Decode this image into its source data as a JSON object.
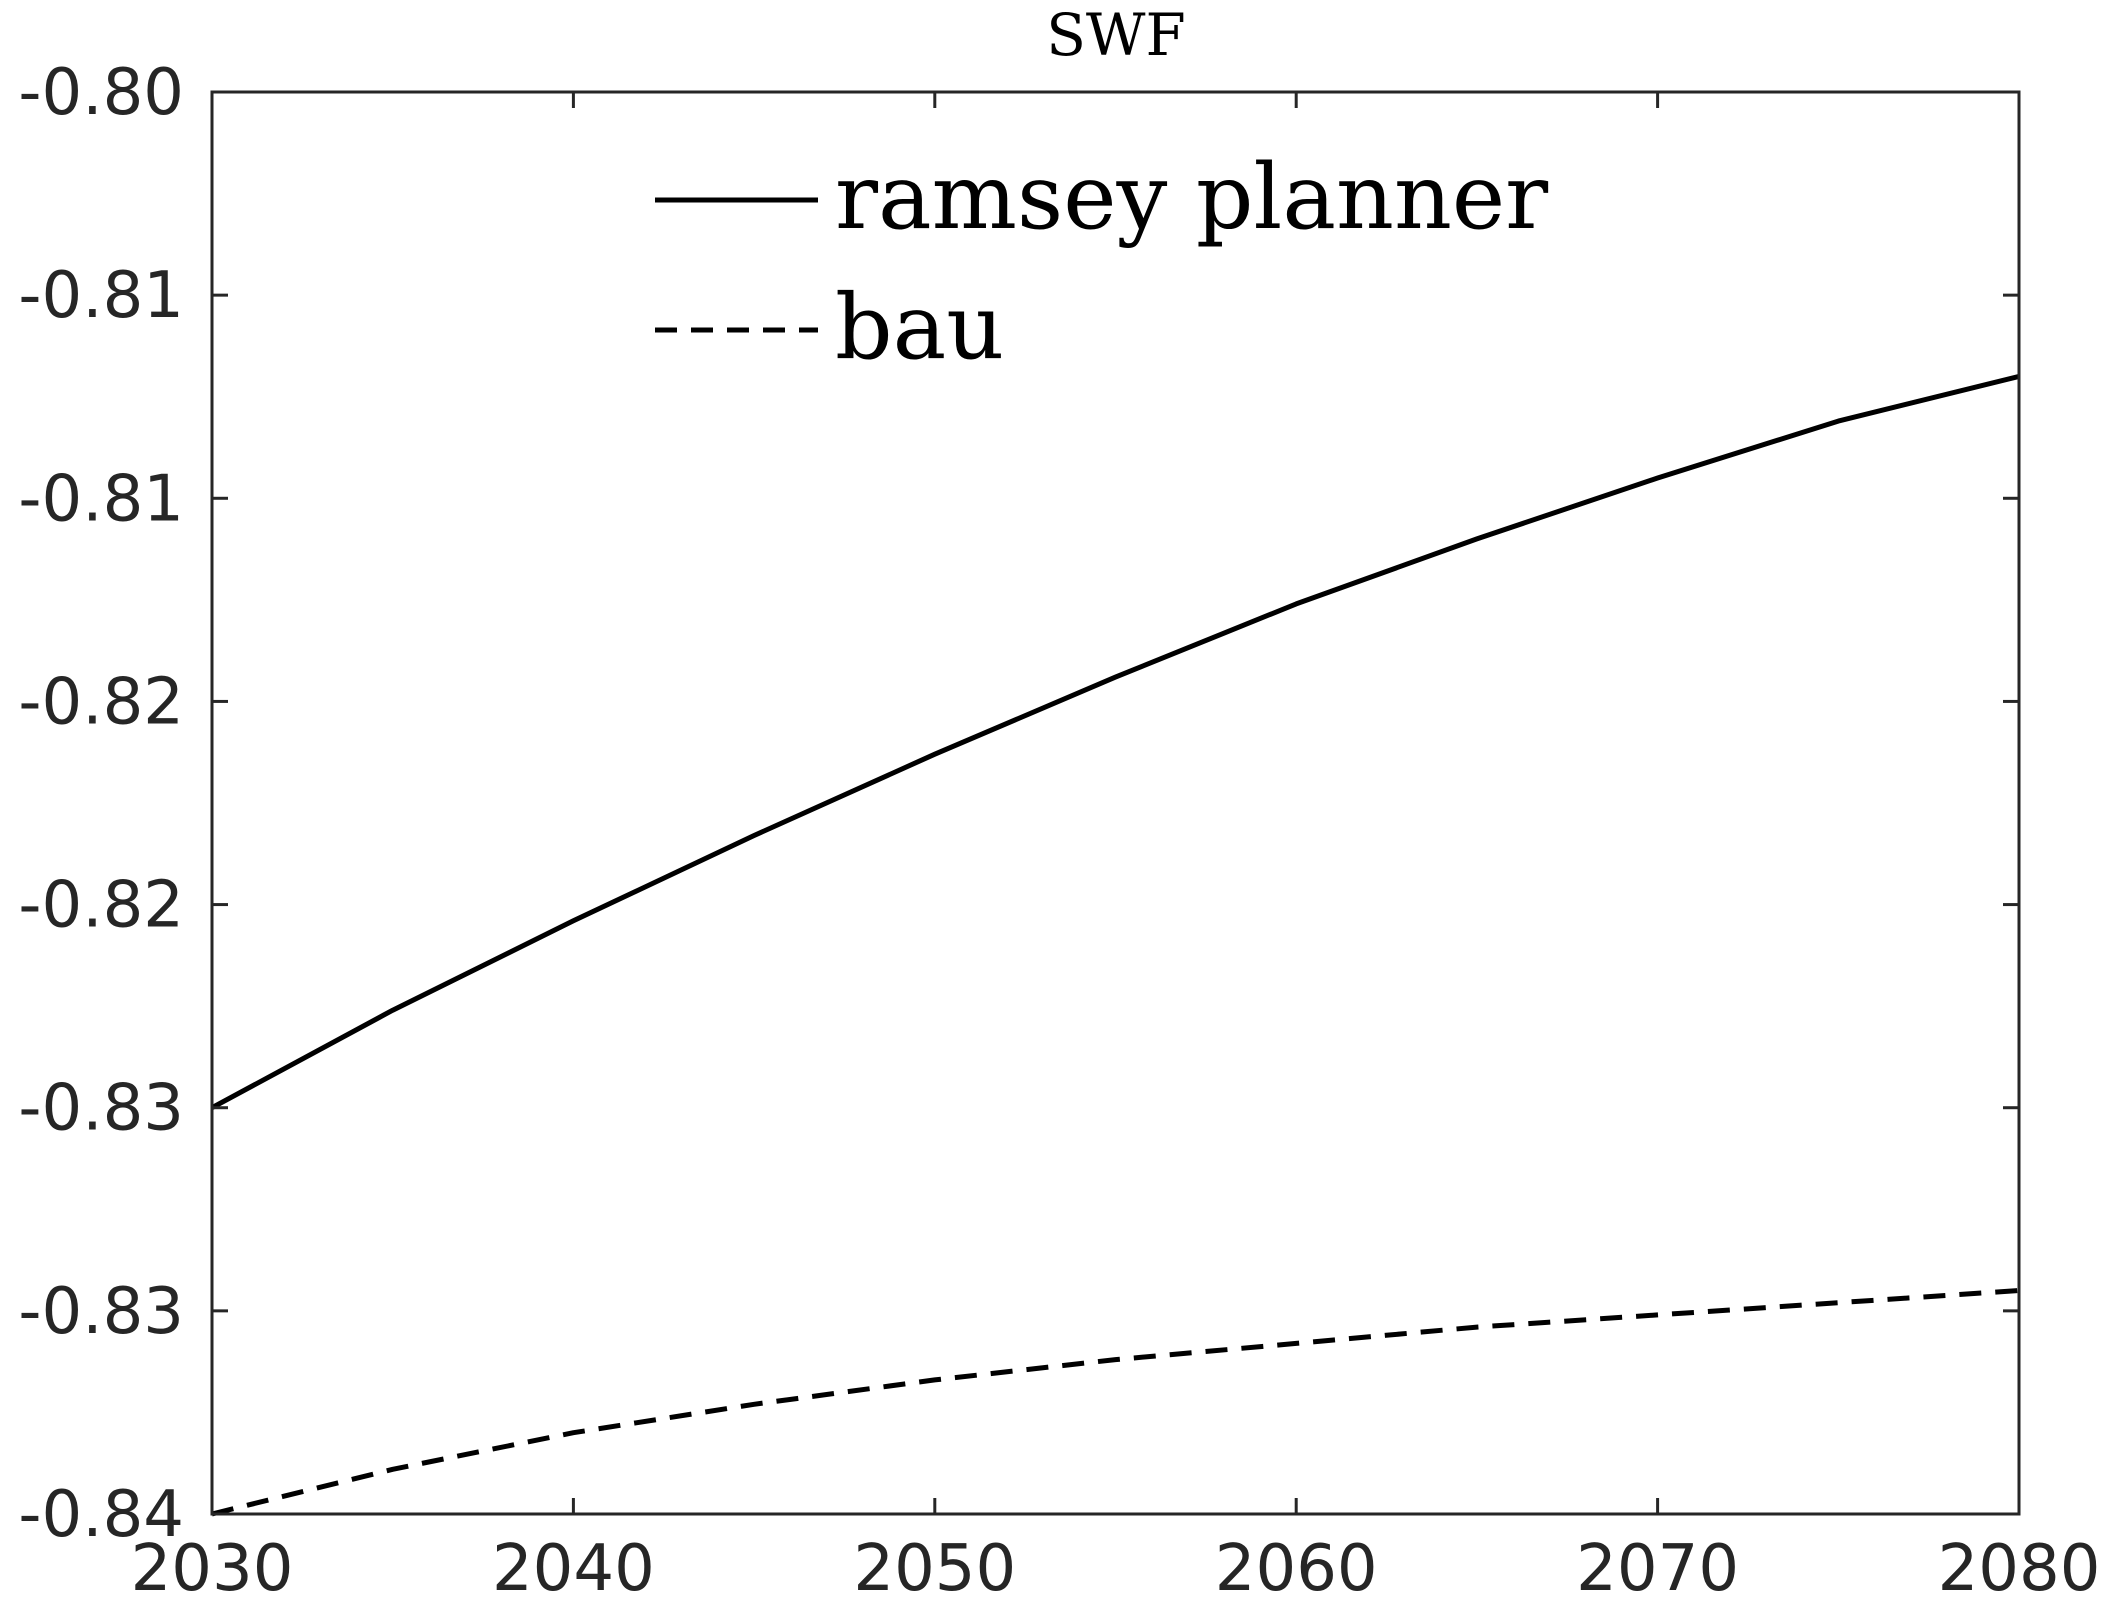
{
  "chart_data": {
    "type": "line",
    "title": "SWF",
    "xlabel": "",
    "ylabel": "",
    "xlim": [
      2030,
      2080
    ],
    "ylim": [
      -0.8375,
      -0.8025
    ],
    "x_ticks": [
      2030,
      2040,
      2050,
      2060,
      2070,
      2080
    ],
    "x_tick_labels": [
      "2030",
      "2040",
      "2050",
      "2060",
      "2070",
      "2080"
    ],
    "y_ticks": [
      -0.8025,
      -0.8075,
      -0.8125,
      -0.8175,
      -0.8225,
      -0.8275,
      -0.8325,
      -0.8375
    ],
    "y_tick_labels": [
      "-0.80",
      "-0.81",
      "-0.81",
      "-0.82",
      "-0.82",
      "-0.83",
      "-0.83",
      "-0.84"
    ],
    "grid": false,
    "legend": {
      "position": "top-center",
      "entries": [
        "ramsey planner",
        "bau"
      ]
    },
    "x": [
      2030,
      2035,
      2040,
      2045,
      2050,
      2055,
      2060,
      2065,
      2070,
      2075,
      2080
    ],
    "series": [
      {
        "name": "ramsey planner",
        "style": "solid",
        "color": "#000000",
        "values": [
          -0.8275,
          -0.8251,
          -0.8229,
          -0.8208,
          -0.8188,
          -0.8169,
          -0.8151,
          -0.8135,
          -0.812,
          -0.8106,
          -0.8095
        ]
      },
      {
        "name": "bau",
        "style": "dashed",
        "color": "#000000",
        "values": [
          -0.8375,
          -0.8364,
          -0.8355,
          -0.8348,
          -0.8342,
          -0.8337,
          -0.8333,
          -0.8329,
          -0.8326,
          -0.8323,
          -0.832
        ]
      }
    ]
  }
}
